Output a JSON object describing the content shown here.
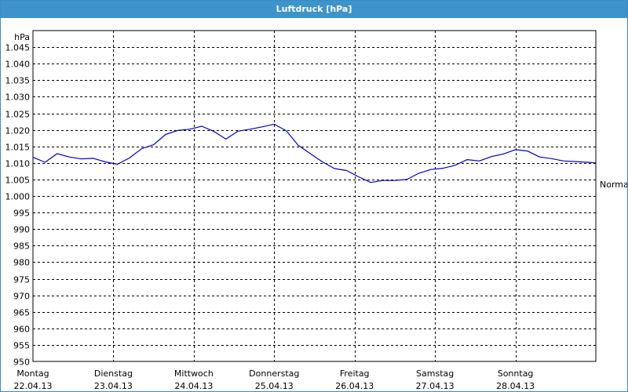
{
  "window": {
    "title": "Luftdruck [hPa]"
  },
  "chart_data": {
    "type": "line",
    "title": "Luftdruck [hPa]",
    "ylabel": "hPa",
    "ylim": [
      950,
      1050
    ],
    "ytick_values": [
      950,
      955,
      960,
      965,
      970,
      975,
      980,
      985,
      990,
      995,
      1000,
      1005,
      1010,
      1015,
      1020,
      1025,
      1030,
      1035,
      1040,
      1045
    ],
    "ytick_labels": [
      "950",
      "955",
      "960",
      "965",
      "970",
      "975",
      "980",
      "985",
      "990",
      "995",
      "1.000",
      "1.005",
      "1.010",
      "1.015",
      "1.020",
      "1.025",
      "1.030",
      "1.035",
      "1.040",
      "1.045"
    ],
    "xlim": [
      0,
      7
    ],
    "xticks": [
      {
        "day": "Montag",
        "date": "22.04.13"
      },
      {
        "day": "Dienstag",
        "date": "23.04.13"
      },
      {
        "day": "Mittwoch",
        "date": "24.04.13"
      },
      {
        "day": "Donnerstag",
        "date": "25.04.13"
      },
      {
        "day": "Freitag",
        "date": "26.04.13"
      },
      {
        "day": "Samstag",
        "date": "27.04.13"
      },
      {
        "day": "Sonntag",
        "date": "28.04.13"
      }
    ],
    "grid": true,
    "annotations": [
      {
        "label": "Normal",
        "y": 1003.5
      }
    ],
    "series": [
      {
        "color": "#0000c8",
        "x": [
          0,
          0.15,
          0.3,
          0.45,
          0.6,
          0.75,
          0.9,
          1.05,
          1.2,
          1.35,
          1.5,
          1.65,
          1.8,
          1.95,
          2.1,
          2.25,
          2.4,
          2.55,
          2.7,
          2.85,
          3.0,
          3.15,
          3.3,
          3.45,
          3.6,
          3.75,
          3.9,
          4.05,
          4.2,
          4.35,
          4.5,
          4.65,
          4.8,
          4.95,
          5.1,
          5.25,
          5.4,
          5.55,
          5.7,
          5.85,
          6.0,
          6.15,
          6.3,
          6.45,
          6.6,
          6.75,
          6.9,
          7.0
        ],
        "y": [
          1011.7,
          1010.2,
          1012.8,
          1011.8,
          1011.2,
          1011.4,
          1010.3,
          1009.6,
          1011.5,
          1014.3,
          1015.5,
          1018.6,
          1019.8,
          1020.2,
          1021.1,
          1019.5,
          1017.2,
          1019.6,
          1020.2,
          1020.9,
          1021.7,
          1019.7,
          1015.3,
          1012.8,
          1010.3,
          1008.3,
          1007.7,
          1005.8,
          1004.1,
          1004.7,
          1004.7,
          1005.0,
          1006.9,
          1008.0,
          1008.4,
          1009.3,
          1011.0,
          1010.6,
          1011.9,
          1012.7,
          1014.0,
          1013.6,
          1011.8,
          1011.3,
          1010.6,
          1010.4,
          1010.2,
          1010.0
        ]
      }
    ]
  }
}
